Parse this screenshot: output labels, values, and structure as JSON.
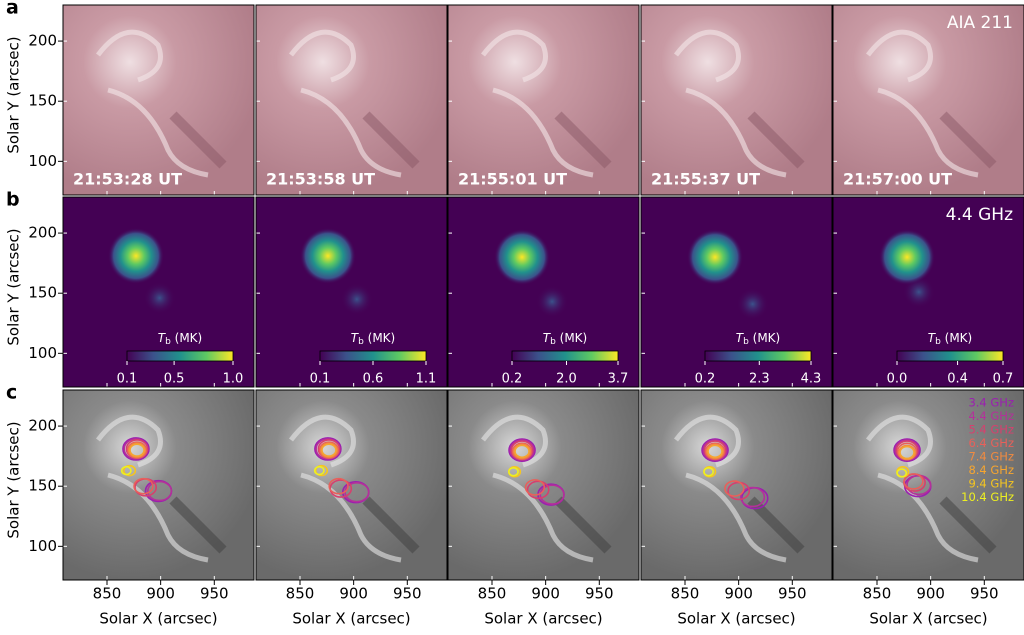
{
  "chart_data": {
    "type": "image-grid",
    "x_label": "Solar X (arcsec)",
    "y_label": "Solar Y (arcsec)",
    "xlim": [
      809,
      987
    ],
    "xticks": [
      850,
      900,
      950
    ],
    "ylim": [
      72,
      230
    ],
    "yticks": [
      100,
      150,
      200
    ],
    "times": [
      "21:53:28 UT",
      "21:53:58 UT",
      "21:55:01 UT",
      "21:55:37 UT",
      "21:57:00 UT"
    ],
    "rows": [
      {
        "panel": "a",
        "label": "AIA 211",
        "kind": "euv"
      },
      {
        "panel": "b",
        "label": "4.4 GHz",
        "kind": "radio",
        "colorbar_label": {
          "symbol": "T",
          "subscript": "b",
          "unit": "(MK)"
        },
        "colorbars": [
          {
            "clim": [
              0.1,
              1.0
            ],
            "ticks": [
              0.1,
              0.5,
              {
                "value": 1,
                "label": "1.0"
              }
            ]
          },
          {
            "clim": [
              0.1,
              1.1
            ],
            "ticks": [
              0.1,
              0.6,
              1.1
            ]
          },
          {
            "clim": [
              0.2,
              3.7
            ],
            "ticks": [
              0.2,
              {
                "value": 2,
                "label": "2.0"
              },
              3.7
            ]
          },
          {
            "clim": [
              0.2,
              4.3
            ],
            "ticks": [
              0.2,
              2.3,
              4.3
            ]
          },
          {
            "clim": [
              0.0,
              0.7
            ],
            "ticks": [
              {
                "value": 0,
                "label": "0.0"
              },
              0.4,
              0.7
            ]
          }
        ]
      },
      {
        "panel": "c",
        "kind": "contour"
      }
    ],
    "series": [
      {
        "name": "3.4 GHz",
        "color": "#9b1fb0",
        "x": [
          877,
          876,
          878,
          878,
          878
        ],
        "y": [
          181,
          181,
          180,
          180,
          180
        ],
        "x_south": [
          898,
          902,
          905,
          915,
          888
        ],
        "y_south": [
          146,
          145,
          143,
          140,
          150
        ]
      },
      {
        "name": "4.4 GHz",
        "color": "#b4309a",
        "x": [
          877,
          876,
          878,
          878,
          878
        ],
        "y": [
          181,
          181,
          180,
          180,
          180
        ],
        "x_south": [
          899,
          903,
          906,
          913,
          889
        ],
        "y_south": [
          146,
          145,
          143,
          141,
          151
        ]
      },
      {
        "name": "5.4 GHz",
        "color": "#d6406e",
        "x": [
          878,
          877,
          878,
          878,
          878
        ],
        "y": [
          181,
          181,
          180,
          180,
          180
        ],
        "x_south": [
          886,
          888,
          893,
          900,
          885
        ],
        "y_south": [
          149,
          148,
          147,
          146,
          153
        ]
      },
      {
        "name": "6.4 GHz",
        "color": "#e8605a",
        "x": [
          878,
          877,
          878,
          878,
          878
        ],
        "y": [
          180,
          180,
          179,
          179,
          179
        ],
        "x_south": [
          884,
          886,
          890,
          896,
          884
        ],
        "y_south": [
          150,
          150,
          149,
          148,
          154
        ]
      },
      {
        "name": "7.4 GHz",
        "color": "#f08a40",
        "x": [
          878,
          877,
          878,
          878,
          878
        ],
        "y": [
          180,
          180,
          179,
          179,
          178
        ]
      },
      {
        "name": "8.4 GHz",
        "color": "#f5a530",
        "x": [
          878,
          877,
          878,
          878,
          878
        ],
        "y": [
          180,
          180,
          179,
          179,
          178
        ]
      },
      {
        "name": "9.4 GHz",
        "color": "#f5c520",
        "x": [
          871,
          870,
          871,
          873,
          874
        ],
        "y": [
          163,
          163,
          162,
          162,
          162
        ]
      },
      {
        "name": "10.4 GHz",
        "color": "#eef020",
        "x": [
          868,
          868,
          870,
          872,
          873
        ],
        "y": [
          163,
          163,
          162,
          162,
          161
        ]
      }
    ]
  }
}
